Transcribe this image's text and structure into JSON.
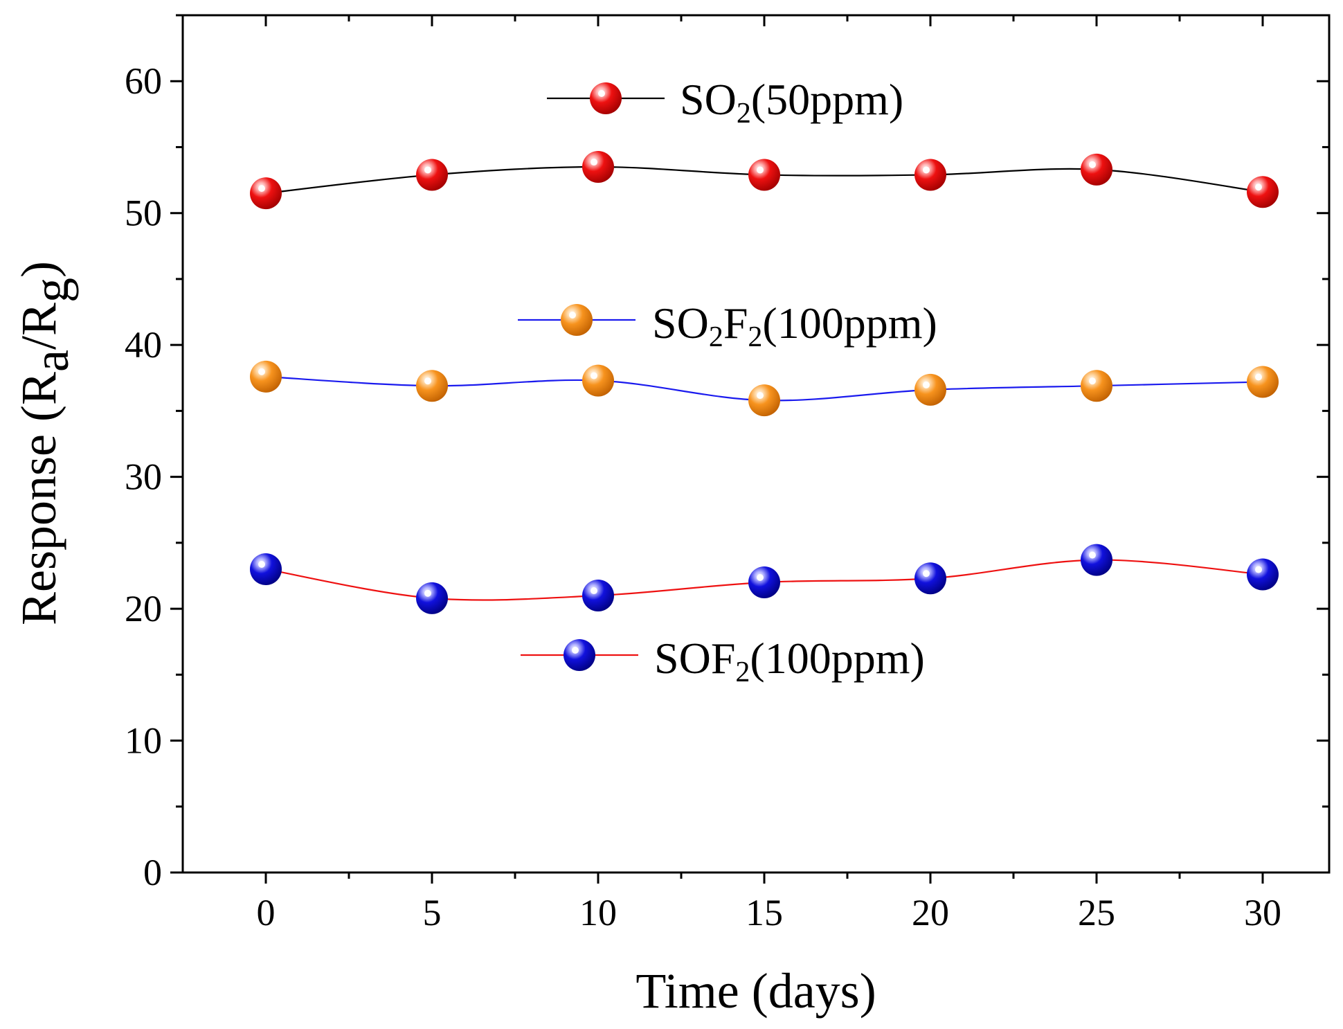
{
  "chart_data": {
    "type": "line",
    "xlabel": "Time (days)",
    "ylabel": {
      "main": "Response (R",
      "sub1": "a",
      "mid": "/R",
      "sub2": "g",
      "end": ")"
    },
    "xlim": [
      -2.5,
      32
    ],
    "ylim": [
      0,
      65
    ],
    "xticks": [
      0,
      5,
      10,
      15,
      20,
      25,
      30
    ],
    "yticks": [
      0,
      10,
      20,
      30,
      40,
      50,
      60
    ],
    "x": [
      0,
      5,
      10,
      15,
      20,
      25,
      30
    ],
    "series": [
      {
        "name": "SO2(50ppm)",
        "legend_parts": [
          {
            "text": "SO",
            "sub": false
          },
          {
            "text": "2",
            "sub": true
          },
          {
            "text": "(50ppm)",
            "sub": false
          }
        ],
        "values": [
          51.5,
          52.9,
          53.5,
          52.9,
          52.9,
          53.3,
          51.6
        ],
        "line_color": "#000000",
        "marker_color": "#ee1111"
      },
      {
        "name": "SO2F2(100ppm)",
        "legend_parts": [
          {
            "text": "SO",
            "sub": false
          },
          {
            "text": "2",
            "sub": true
          },
          {
            "text": "F",
            "sub": false
          },
          {
            "text": "2",
            "sub": true
          },
          {
            "text": "(100ppm)",
            "sub": false
          }
        ],
        "values": [
          37.6,
          36.9,
          37.3,
          35.8,
          36.6,
          36.9,
          37.2
        ],
        "line_color": "#1a1aee",
        "marker_color": "#f7931e"
      },
      {
        "name": "SOF2(100ppm)",
        "legend_parts": [
          {
            "text": "SOF",
            "sub": false
          },
          {
            "text": "2",
            "sub": true
          },
          {
            "text": "(100ppm)",
            "sub": false
          }
        ],
        "values": [
          23.0,
          20.8,
          21.0,
          22.0,
          22.3,
          23.7,
          22.6
        ],
        "line_color": "#ee1111",
        "marker_color": "#1111dd"
      }
    ],
    "legend": "inline, upper-center, one label above each curve"
  }
}
